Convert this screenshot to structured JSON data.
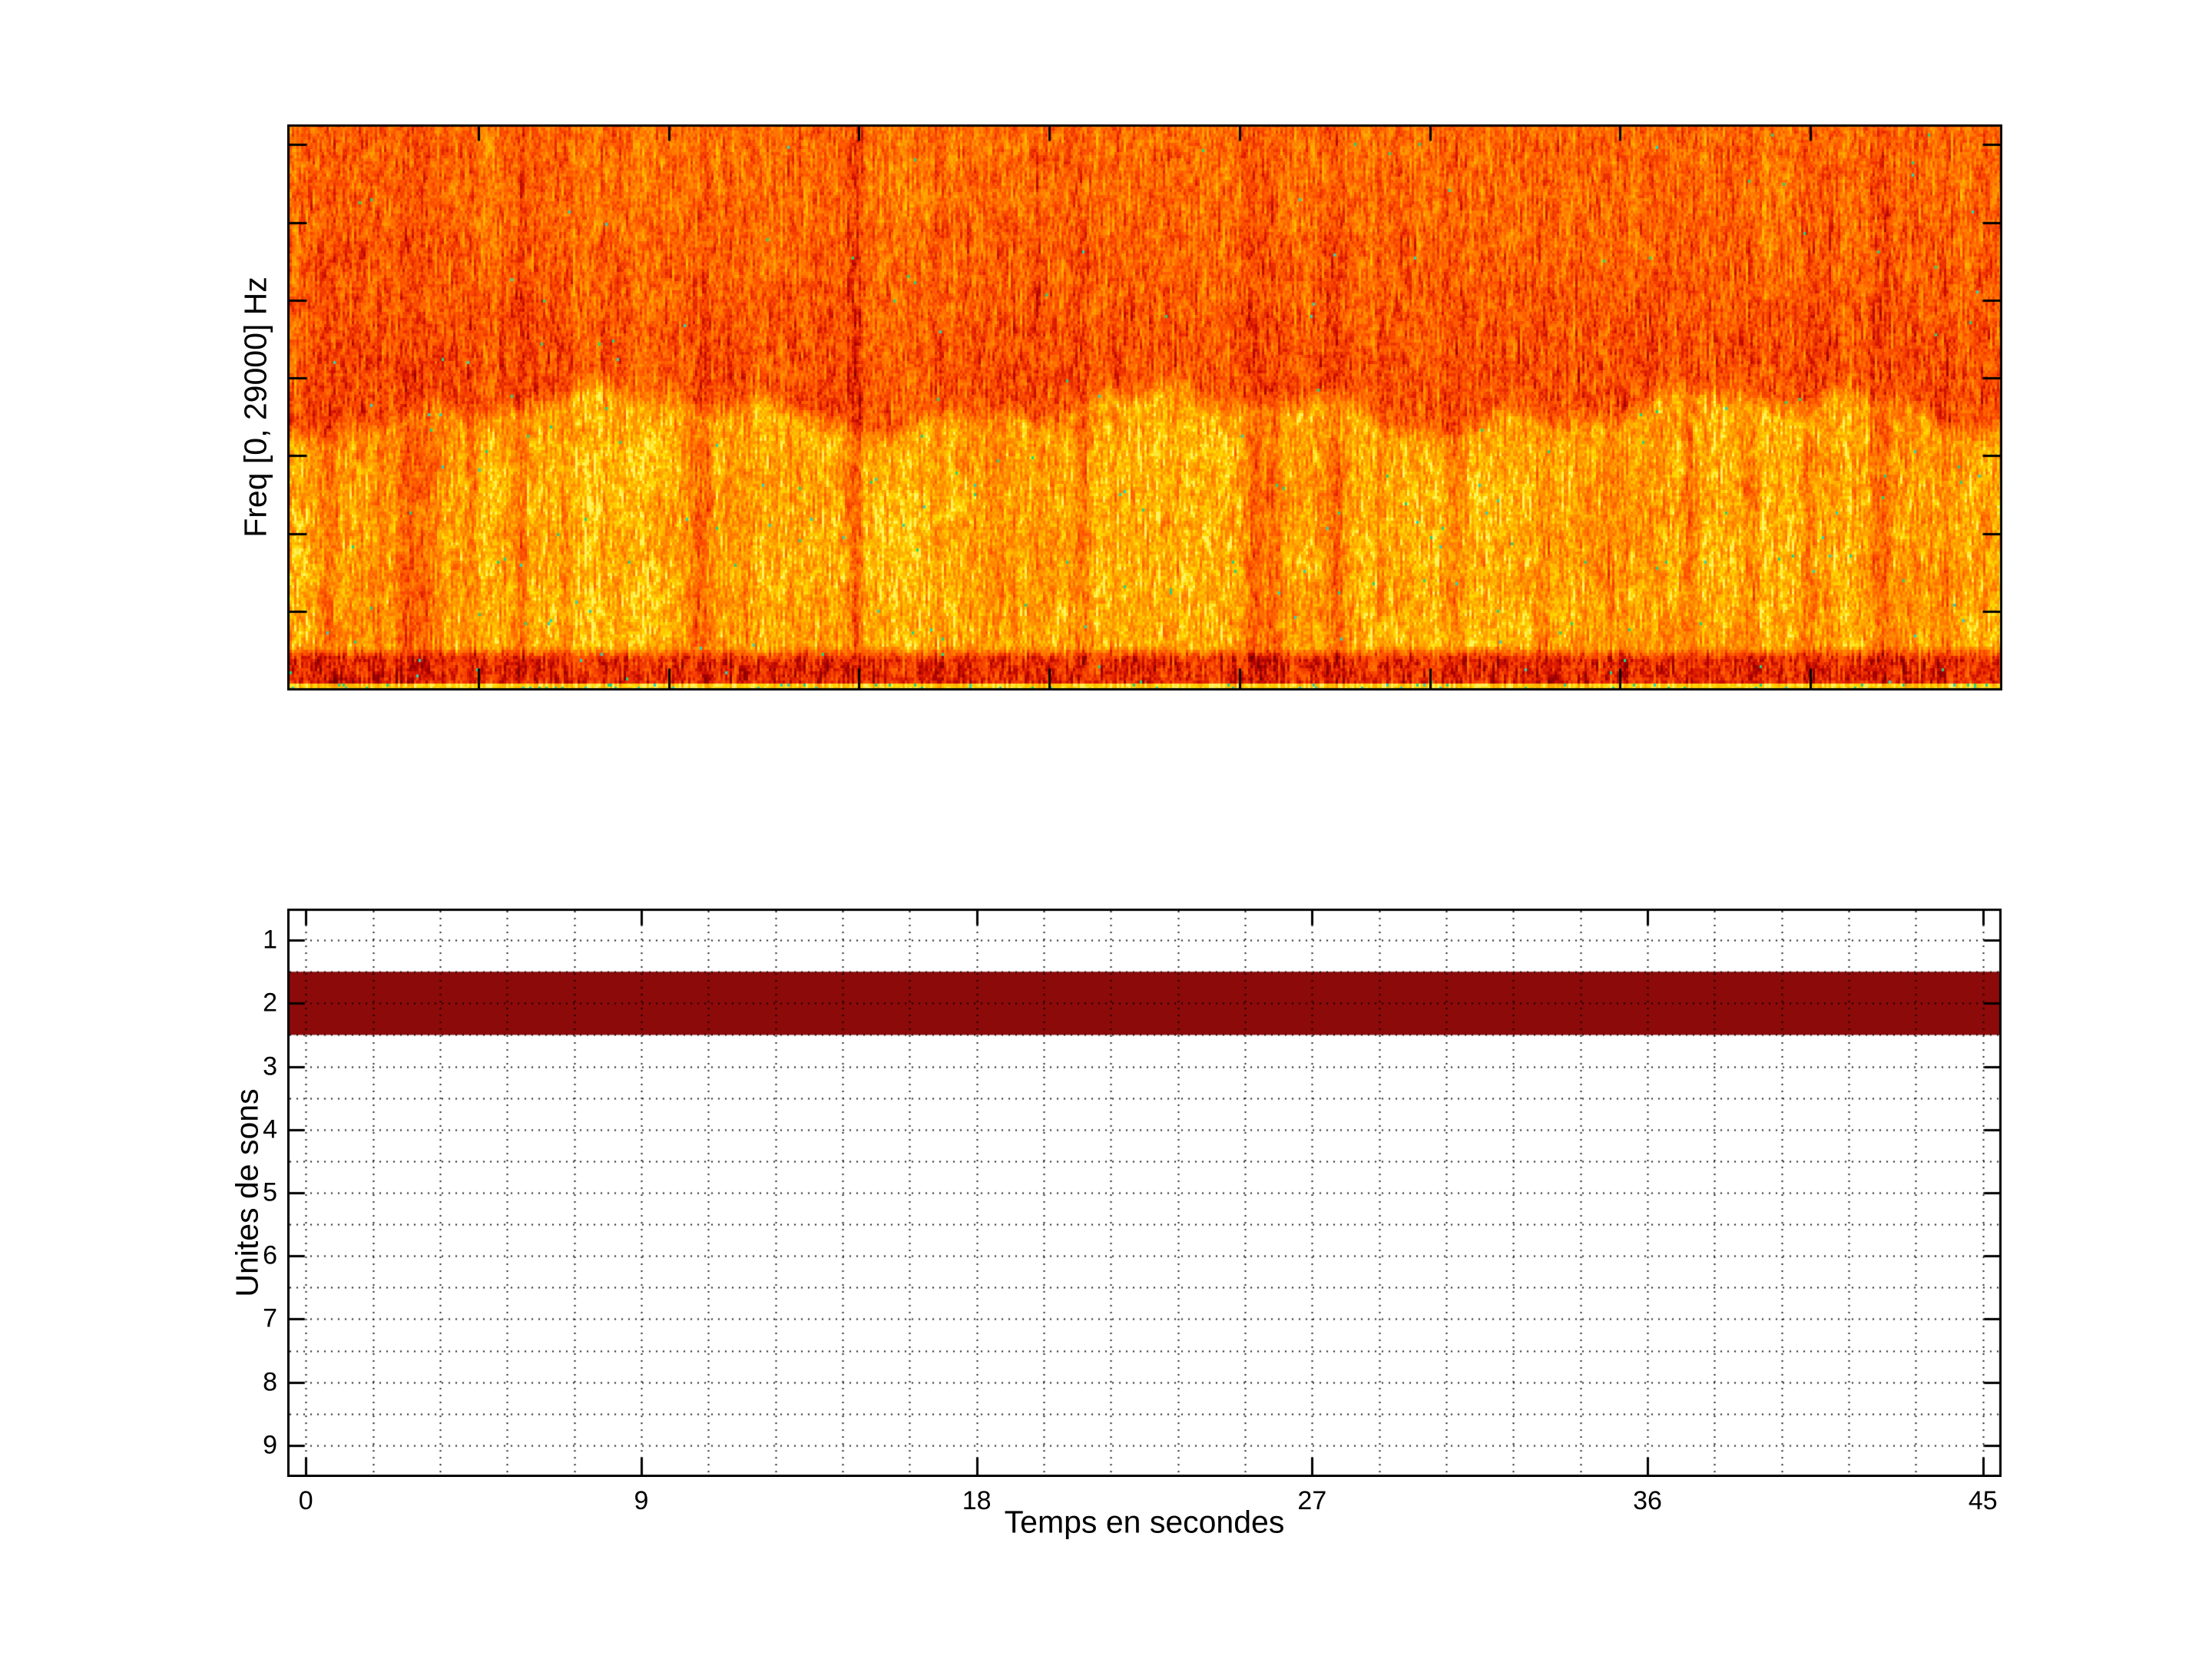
{
  "figure": {
    "background": "#ffffff",
    "description": "MATLAB-style figure with a spectrogram (top) and a sound-unit detection raster (bottom)"
  },
  "chart_data": [
    {
      "type": "heatmap",
      "name": "spectrogram",
      "title": "",
      "xlabel": "",
      "ylabel": "Freq [0, 29000] Hz",
      "x_range_seconds": [
        0,
        45
      ],
      "y_range_hz": [
        0,
        29000
      ],
      "x_tick_step_s": 5,
      "y_tick_step_hz": 4000,
      "tick_labels_visible": false,
      "grid": false,
      "colormap_stops": [
        [
          0.0,
          "#700000"
        ],
        [
          0.14,
          "#a80000"
        ],
        [
          0.27,
          "#d91800"
        ],
        [
          0.38,
          "#f23a00"
        ],
        [
          0.5,
          "#ff5a00"
        ],
        [
          0.62,
          "#ff7c00"
        ],
        [
          0.73,
          "#ff9b00"
        ],
        [
          0.83,
          "#ffba00"
        ],
        [
          0.92,
          "#ffd900"
        ],
        [
          1.0,
          "#fff35c"
        ]
      ],
      "outlier_speck_colors": [
        "#29d17c",
        "#2bd4bb"
      ],
      "structure": {
        "upper_zone": {
          "freq_hz": [
            14500,
            29000
          ],
          "level": 0.53,
          "comment": "uniform orange noise, slightly redder toward lower edge"
        },
        "bright_band": {
          "freq_hz": [
            1800,
            14000
          ],
          "level": 0.77,
          "comment": "bright yellow-orange noise band with wavy upper boundary"
        },
        "boundary_wave_hz": [
          12500,
          15500
        ],
        "dark_band": {
          "freq_hz": [
            400,
            1800
          ],
          "level": 0.33,
          "comment": "dark red low-frequency band"
        },
        "bottom_line": {
          "freq_hz": [
            0,
            400
          ],
          "level": 0.9,
          "comment": "bright yellow bottom line with teal specks"
        },
        "noise_amplitude": 0.17
      },
      "streaks_seconds": [
        {
          "t": 1.1,
          "strength": 0.3,
          "width_s": 0.15
        },
        {
          "t": 2.4,
          "strength": 0.22,
          "width_s": 0.12
        },
        {
          "t": 3.2,
          "strength": 0.45,
          "width_s": 0.22
        },
        {
          "t": 3.7,
          "strength": 0.35,
          "width_s": 0.14
        },
        {
          "t": 4.8,
          "strength": 0.25,
          "width_s": 0.12
        },
        {
          "t": 6.1,
          "strength": 0.3,
          "width_s": 0.15
        },
        {
          "t": 7.4,
          "strength": 0.2,
          "width_s": 0.12
        },
        {
          "t": 10.8,
          "strength": 0.45,
          "width_s": 0.2
        },
        {
          "t": 12.0,
          "strength": 0.18,
          "width_s": 0.12
        },
        {
          "t": 14.9,
          "strength": 0.4,
          "width_s": 0.16
        },
        {
          "t": 18.6,
          "strength": 0.25,
          "width_s": 0.14
        },
        {
          "t": 20.9,
          "strength": 0.35,
          "width_s": 0.16
        },
        {
          "t": 23.3,
          "strength": 0.18,
          "width_s": 0.12
        },
        {
          "t": 25.4,
          "strength": 0.4,
          "width_s": 0.18
        },
        {
          "t": 25.9,
          "strength": 0.35,
          "width_s": 0.14
        },
        {
          "t": 27.6,
          "strength": 0.3,
          "width_s": 0.16
        },
        {
          "t": 30.6,
          "strength": 0.35,
          "width_s": 0.16
        },
        {
          "t": 33.0,
          "strength": 0.2,
          "width_s": 0.12
        },
        {
          "t": 34.7,
          "strength": 0.3,
          "width_s": 0.16
        },
        {
          "t": 36.8,
          "strength": 0.28,
          "width_s": 0.14
        },
        {
          "t": 38.4,
          "strength": 0.38,
          "width_s": 0.18
        },
        {
          "t": 39.9,
          "strength": 0.3,
          "width_s": 0.14
        },
        {
          "t": 41.8,
          "strength": 0.35,
          "width_s": 0.16
        },
        {
          "t": 43.5,
          "strength": 0.2,
          "width_s": 0.12
        }
      ]
    },
    {
      "type": "heatmap",
      "name": "sound-units",
      "title": "",
      "xlabel": "Temps en secondes",
      "ylabel": "Unites de sons",
      "xlim": [
        -0.5,
        45.5
      ],
      "ylim_top_to_bottom": [
        0.5,
        9.5
      ],
      "x_tick_values": [
        0,
        9,
        18,
        27,
        36,
        45
      ],
      "x_tick_labels": [
        "0",
        "9",
        "18",
        "27",
        "36",
        "45"
      ],
      "y_tick_values": [
        1,
        2,
        3,
        4,
        5,
        6,
        7,
        8,
        9
      ],
      "y_tick_labels": [
        "1",
        "2",
        "3",
        "4",
        "5",
        "6",
        "7",
        "8",
        "9"
      ],
      "grid": true,
      "grid_style": "dotted",
      "x_minor_grid_step_s": 1.8,
      "y_grid_step": 0.5,
      "active_band": {
        "unit": 2,
        "y_span": [
          1.5,
          2.5
        ],
        "t_span_s": [
          -0.5,
          45.5
        ],
        "color": "#8c0a0a"
      },
      "background": "#ffffff",
      "axis_color": "#000000"
    }
  ]
}
